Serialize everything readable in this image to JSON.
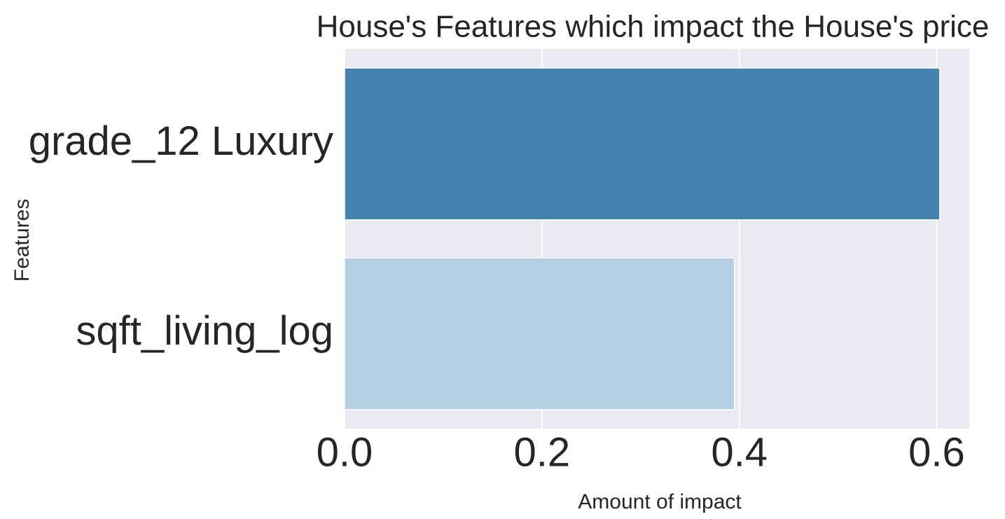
{
  "chart_data": {
    "type": "bar",
    "orientation": "horizontal",
    "title": "House's Features which impact the House's price",
    "xlabel": "Amount of impact",
    "ylabel": "Features",
    "categories": [
      "grade_12 Luxury",
      "sqft_living_log"
    ],
    "values": [
      0.603,
      0.395
    ],
    "colors": [
      "#4682b0",
      "#b3cfe1"
    ],
    "xlim": [
      0,
      0.633
    ],
    "xticks": [
      0.0,
      0.2,
      0.4,
      0.6
    ],
    "xtick_labels": [
      "0.0",
      "0.2",
      "0.4",
      "0.6"
    ],
    "grid": true,
    "background": "#eaeaf2"
  }
}
